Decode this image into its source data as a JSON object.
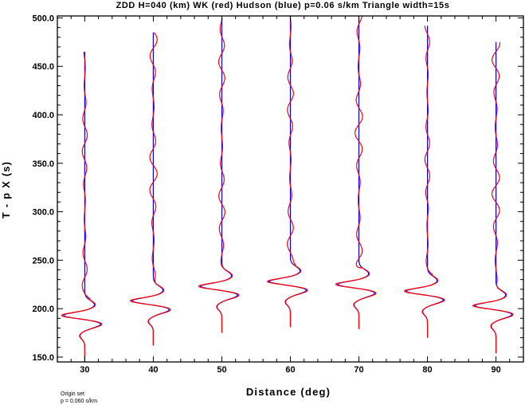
{
  "chart_data": {
    "type": "line",
    "title": "ZDD H=040 (km) WK (red) Hudson (blue) p=0.06 s/km Triangle width=15s",
    "xlabel": "Distance (deg)",
    "ylabel": "T - p X (s)",
    "xlim": [
      26,
      94
    ],
    "ylim": [
      145,
      502
    ],
    "xticks": [
      30,
      40,
      50,
      60,
      70,
      80,
      90
    ],
    "xtick_labels": [
      "30",
      "40",
      "50",
      "60",
      "70",
      "80",
      "90"
    ],
    "yticks": [
      150,
      200,
      250,
      300,
      350,
      400,
      450,
      500
    ],
    "ytick_labels": [
      "150.0",
      "200.0",
      "250.0",
      "300.0",
      "350.0",
      "400.0",
      "450.0",
      "500.0"
    ],
    "grid": false,
    "series": [
      {
        "name": "WK (red)",
        "color": "#ff0000"
      },
      {
        "name": "Hudson (blue)",
        "color": "#0000ff"
      }
    ],
    "traces": [
      {
        "distance": 30,
        "t_start": 145,
        "t_end": 465,
        "arrival": 190
      },
      {
        "distance": 40,
        "t_start": 162,
        "t_end": 485,
        "arrival": 205
      },
      {
        "distance": 50,
        "t_start": 175,
        "t_end": 500,
        "arrival": 220
      },
      {
        "distance": 60,
        "t_start": 181,
        "t_end": 502,
        "arrival": 225
      },
      {
        "distance": 70,
        "t_start": 179,
        "t_end": 502,
        "arrival": 222
      },
      {
        "distance": 80,
        "t_start": 170,
        "t_end": 492,
        "arrival": 215
      },
      {
        "distance": 90,
        "t_start": 154,
        "t_end": 475,
        "arrival": 200
      }
    ],
    "notes": [
      "Origin set",
      "p = 0.060 s/km"
    ]
  }
}
